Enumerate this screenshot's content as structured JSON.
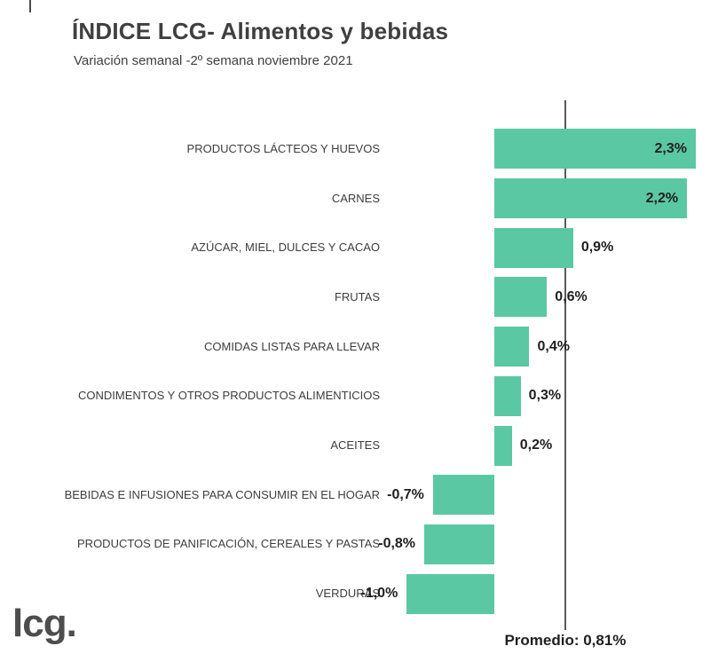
{
  "header": {
    "title": "ÍNDICE LCG- Alimentos y bebidas",
    "subtitle": "Variación semanal -2º semana noviembre 2021"
  },
  "footer": {
    "logo": "lcg.",
    "average_label": "Promedio: 0,81%"
  },
  "chart_data": {
    "type": "bar",
    "orientation": "horizontal",
    "title": "ÍNDICE LCG- Alimentos y bebidas",
    "subtitle": "Variación semanal -2º semana noviembre 2021",
    "categories": [
      "PRODUCTOS LÁCTEOS Y HUEVOS",
      "CARNES",
      "AZÚCAR, MIEL, DULCES Y CACAO",
      "FRUTAS",
      "COMIDAS LISTAS PARA LLEVAR",
      "CONDIMENTOS Y OTROS PRODUCTOS ALIMENTICIOS",
      "ACEITES",
      "BEBIDAS E INFUSIONES PARA CONSUMIR EN EL HOGAR",
      "PRODUCTOS DE PANIFICACIÓN, CEREALES Y PASTAS",
      "VERDURAS"
    ],
    "values": [
      2.3,
      2.2,
      0.9,
      0.6,
      0.4,
      0.3,
      0.2,
      -0.7,
      -0.8,
      -1.0
    ],
    "value_labels": [
      "2,3%",
      "2,2%",
      "0,9%",
      "0,6%",
      "0,4%",
      "0,3%",
      "0,2%",
      "-0,7%",
      "-0,8%",
      "-1,0%"
    ],
    "average": 0.81,
    "average_label": "Promedio: 0,81%",
    "unit": "%",
    "xlim": [
      -1.2,
      2.4
    ],
    "bar_color": "#5ac8a3",
    "axis_line_color": "#595959",
    "grid": false,
    "legend": false
  }
}
